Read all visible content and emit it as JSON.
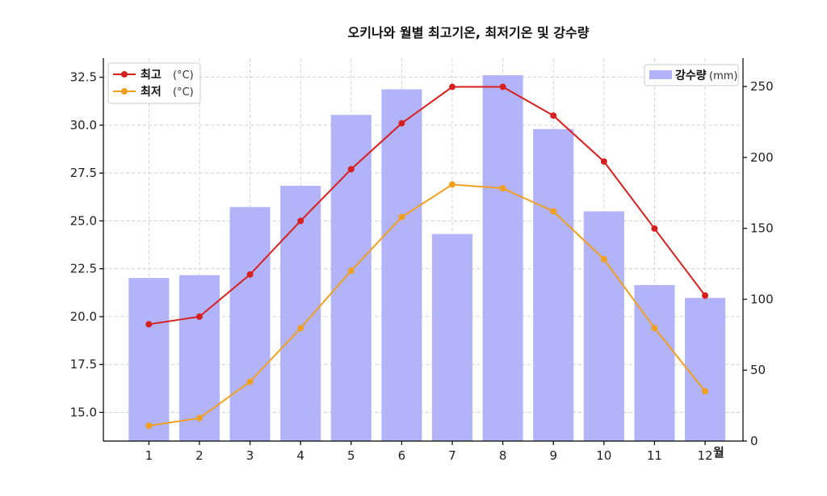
{
  "chart_data": {
    "type": "bar+line",
    "title": "오키나와 월별 최고기온, 최저기온 및 강수량",
    "categories": [
      "1",
      "2",
      "3",
      "4",
      "5",
      "6",
      "7",
      "8",
      "9",
      "10",
      "11",
      "12"
    ],
    "x_unit_label": "월",
    "bar_series": {
      "name": "강수량",
      "unit": "(mm)",
      "values": [
        115,
        117,
        165,
        180,
        230,
        248,
        146,
        258,
        220,
        162,
        110,
        101
      ],
      "color": "#b3b3fa",
      "axis": "right"
    },
    "line_series": [
      {
        "name": "최고",
        "unit": "(°C)",
        "values": [
          19.6,
          20.0,
          22.2,
          25.0,
          27.7,
          30.1,
          32.0,
          32.0,
          30.5,
          28.1,
          24.6,
          21.1
        ],
        "color": "#d62020",
        "axis": "left"
      },
      {
        "name": "최저",
        "unit": "(°C)",
        "values": [
          14.3,
          14.7,
          16.6,
          19.4,
          22.4,
          25.2,
          26.9,
          26.7,
          25.5,
          23.0,
          19.4,
          16.1
        ],
        "color": "#f0a020",
        "axis": "left"
      }
    ],
    "left_axis": {
      "min": 13.5,
      "max": 33.5,
      "ticks": [
        "15.0",
        "17.5",
        "20.0",
        "22.5",
        "25.0",
        "27.5",
        "30.0",
        "32.5"
      ]
    },
    "right_axis": {
      "min": 0,
      "max": 270,
      "ticks": [
        "0",
        "50",
        "100",
        "150",
        "200",
        "250"
      ]
    },
    "grid": true,
    "legend_left_placement": "top-left",
    "legend_right_placement": "top-right"
  }
}
